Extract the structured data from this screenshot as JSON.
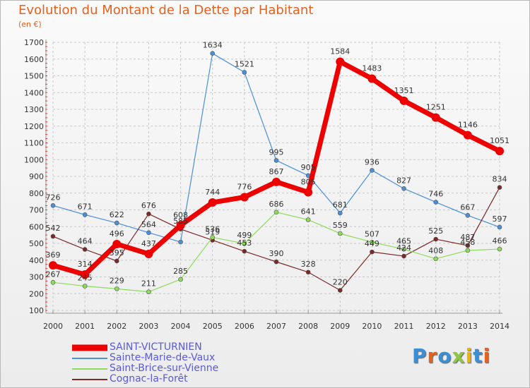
{
  "title": "Evolution du Montant de la Dette par Habitant",
  "subtitle": "(en €)",
  "logo": {
    "text": "Proxiti",
    "letters": [
      {
        "ch": "P",
        "color": "#3b8fd4"
      },
      {
        "ch": "r",
        "color": "#e8601c"
      },
      {
        "ch": "o",
        "color": "#3b8fd4"
      },
      {
        "ch": "x",
        "color": "#8dc63f"
      },
      {
        "ch": "i",
        "color": "#f0b400"
      },
      {
        "ch": "t",
        "color": "#3b8fd4"
      },
      {
        "ch": "i",
        "color": "#e8601c"
      }
    ]
  },
  "chart_data": {
    "type": "line",
    "title": "Evolution du Montant de la Dette par Habitant",
    "subtitle": "(en €)",
    "xlabel": "",
    "ylabel": "",
    "ylim": [
      100,
      1700
    ],
    "yticks": [
      100,
      200,
      300,
      400,
      500,
      600,
      700,
      800,
      900,
      1000,
      1100,
      1200,
      1300,
      1400,
      1500,
      1600,
      1700
    ],
    "grid": true,
    "legend_position": "bottom-left",
    "x": [
      "2000",
      "2001",
      "2002",
      "2003",
      "2004",
      "2005",
      "2006",
      "2007",
      "2008",
      "2009",
      "2010",
      "2011",
      "2012",
      "2013",
      "2014"
    ],
    "series": [
      {
        "name": "Sainte-Marie-de-Vaux",
        "color": "#4a8fd8",
        "width": 1.2,
        "values": [
          726,
          671,
          622,
          564,
          508,
          1634,
          1521,
          995,
          905,
          681,
          936,
          827,
          746,
          667,
          597
        ],
        "labels": [
          "726",
          "671",
          "622",
          "564",
          "",
          "1634",
          "1521",
          "995",
          "905",
          "681",
          "936",
          "827",
          "746",
          "667",
          "597"
        ]
      },
      {
        "name": "Cognac-la-Forêt",
        "color": "#7a2828",
        "width": 1.2,
        "values": [
          542,
          464,
          395,
          676,
          585,
          519,
          453,
          390,
          328,
          220,
          449,
          424,
          525,
          487,
          834
        ],
        "labels": [
          "542",
          "464",
          "395",
          "676",
          "585",
          "519",
          "453",
          "390",
          "328",
          "220",
          "449",
          "424",
          "525",
          "487",
          "834"
        ]
      },
      {
        "name": "Saint-Brice-sur-Vienne",
        "color": "#8ddb5a",
        "width": 1.2,
        "values": [
          267,
          245,
          229,
          211,
          285,
          536,
          499,
          686,
          641,
          559,
          507,
          465,
          408,
          458,
          466
        ],
        "labels": [
          "267",
          "245",
          "229",
          "211",
          "285",
          "536",
          "499",
          "686",
          "641",
          "559",
          "507",
          "465",
          "408",
          "458",
          "466"
        ]
      },
      {
        "name": "SAINT-VICTURNIEN",
        "color": "#ee0000",
        "width": 7,
        "values": [
          369,
          314,
          496,
          437,
          608,
          744,
          776,
          867,
          805,
          1584,
          1483,
          1351,
          1251,
          1146,
          1051
        ],
        "labels": [
          "369",
          "314",
          "496",
          "437",
          "608",
          "744",
          "776",
          "867",
          "805",
          "1584",
          "1483",
          "1351",
          "1251",
          "1146",
          "1051"
        ]
      }
    ],
    "legend_order": [
      "SAINT-VICTURNIEN",
      "Sainte-Marie-de-Vaux",
      "Saint-Brice-sur-Vienne",
      "Cognac-la-Forêt"
    ]
  }
}
